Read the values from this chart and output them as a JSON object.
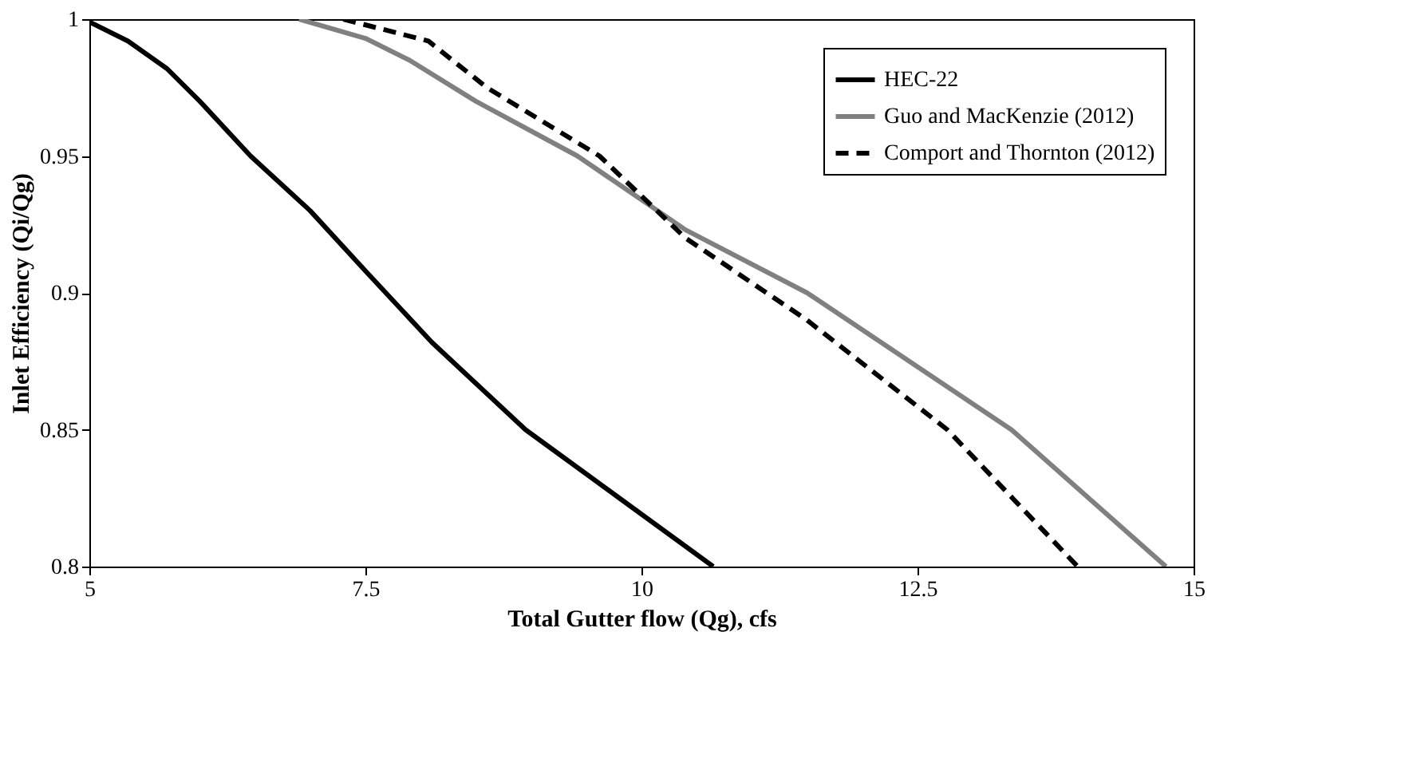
{
  "chart_data": {
    "type": "line",
    "xlabel": "Total Gutter flow (Qg), cfs",
    "ylabel": "Inlet Efficiency (Qi/Qg)",
    "xlim": [
      5,
      15
    ],
    "xticks": [
      5,
      7.5,
      10,
      12.5,
      15
    ],
    "ylim": [
      0.8,
      1
    ],
    "yticks": [
      0.8,
      0.85,
      0.9,
      0.95,
      1
    ],
    "grid": false,
    "legend": "top right",
    "series": [
      {
        "name": "HEC-22",
        "color": "#000000",
        "line_style": "solid",
        "x": [
          5,
          5.35,
          5.7,
          6,
          6.46,
          7,
          7.5,
          8.1,
          8.95,
          9.8,
          10.65
        ],
        "values": [
          0.999,
          0.992,
          0.982,
          0.97,
          0.95,
          0.93,
          0.908,
          0.882,
          0.85,
          0.825,
          0.8
        ]
      },
      {
        "name": "Guo and MacKenzie (2012)",
        "color": "#808080",
        "line_style": "solid",
        "x": [
          6.9,
          7.5,
          7.9,
          8.5,
          9.42,
          10.4,
          11.5,
          13.35,
          14.75
        ],
        "values": [
          1,
          0.993,
          0.985,
          0.97,
          0.95,
          0.923,
          0.9,
          0.85,
          0.8
        ]
      },
      {
        "name": "Comport and Thornton (2012)",
        "color": "#000000",
        "line_style": "dashed",
        "x": [
          7.3,
          8.07,
          8.6,
          9.62,
          10.4,
          11.5,
          12.77,
          13.95
        ],
        "values": [
          1,
          0.992,
          0.975,
          0.95,
          0.92,
          0.89,
          0.85,
          0.8
        ]
      }
    ]
  }
}
